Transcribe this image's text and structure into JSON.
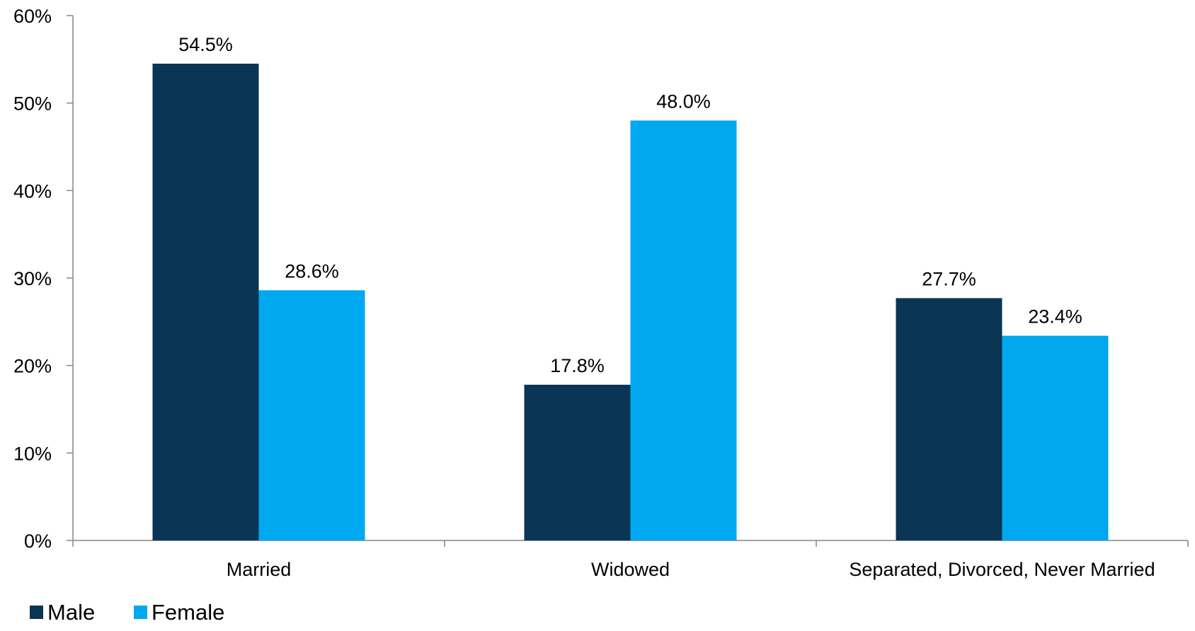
{
  "chart_data": {
    "type": "bar",
    "categories": [
      "Married",
      "Widowed",
      "Separated, Divorced, Never Married"
    ],
    "series": [
      {
        "name": "Male",
        "values": [
          54.5,
          17.8,
          27.7
        ],
        "labels": [
          "54.5%",
          "17.8%",
          "27.7%"
        ],
        "color": "#0a3555"
      },
      {
        "name": "Female",
        "values": [
          28.6,
          48.0,
          23.4
        ],
        "labels": [
          "28.6%",
          "48.0%",
          "23.4%"
        ],
        "color": "#00a8f0"
      }
    ],
    "ylim": [
      0,
      60
    ],
    "yticks": [
      0,
      10,
      20,
      30,
      40,
      50,
      60
    ],
    "ytick_labels": [
      "0%",
      "10%",
      "20%",
      "30%",
      "40%",
      "50%",
      "60%"
    ],
    "xlabel": "",
    "ylabel": "",
    "grid": false,
    "legend": "bottom-left"
  }
}
